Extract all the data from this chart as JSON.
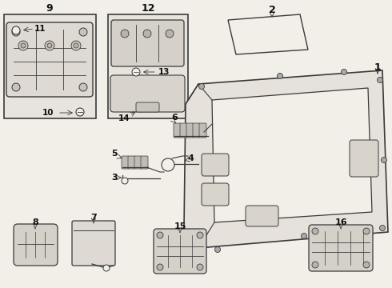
{
  "bg_color": "#f2efe9",
  "line_color": "#3a3a3a",
  "text_color": "#111111",
  "box1_color": "#e8e4dd",
  "box2_color": "#e8e4dd"
}
